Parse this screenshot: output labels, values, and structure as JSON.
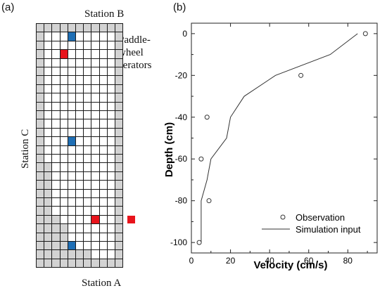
{
  "panel_a": {
    "label": "(a)",
    "station_b": "Station B",
    "station_c": "Station C",
    "station_a": "Station A",
    "aerator_label_lines": [
      "Paddle-",
      "wheel",
      "aerators"
    ],
    "colors": {
      "shaded": "#d3d3d3",
      "open": "#ffffff",
      "grid_line": "#1a1a1a",
      "blue_marker": "#1f6fb5",
      "red_marker": "#e8141c"
    },
    "grid": {
      "cols": 11,
      "rows": 28,
      "shaded_rows_pattern": [
        "XXXXXXXXXXX",
        "XOOOOOOOOOX",
        "XOOOOOOOOOX",
        "XOOOOOOOOOX",
        "XOOOOOOOOOX",
        "XOOOOOOOOOX",
        "XOOOOOOOOOX",
        "XOOOOOOOOOX",
        "XOOOOOOOOOX",
        "XOOOOOOOOOX",
        "XOOOOOOOOOX",
        "XOOOOOOOOOX",
        "XOOOOOOOOOX",
        "XOOOOOOOOOX",
        "XOOOOOOOOOX",
        "XOOOOOOOOOX",
        "XXOOOOOOOOX",
        "XXOOOOOOOOX",
        "XXOOOOOOOOX",
        "XXOOOOOOOOX",
        "XXOOOOOOOOX",
        "XXOOOOOOOOX",
        "XXXOOOOOOOX",
        "XXXXOOOOOOX",
        "XXXXOOOOOOX",
        "XXXXXOOOOOX",
        "XXXXXXXOOOX",
        "XXXXXXXXXXX"
      ],
      "blue_cells": [
        [
          1,
          4
        ],
        [
          13,
          4
        ],
        [
          25,
          4
        ]
      ],
      "red_cells": [
        [
          3,
          3
        ],
        [
          22,
          7
        ]
      ],
      "outside_red": {
        "row": 22
      }
    }
  },
  "panel_b": {
    "label": "(b)"
  },
  "chart_data": {
    "type": "scatter",
    "xlabel": "Velocity (cm/s)",
    "ylabel": "Depth (cm)",
    "xlim": [
      0,
      95
    ],
    "ylim": [
      -105,
      5
    ],
    "xticks": [
      0,
      20,
      40,
      60,
      80
    ],
    "yticks": [
      0,
      -20,
      -40,
      -60,
      -80,
      -100
    ],
    "grid": false,
    "legend_position": "bottom-right",
    "series": [
      {
        "name": "Observation",
        "style": "open-circle",
        "x": [
          89,
          56,
          8,
          5,
          9,
          4
        ],
        "y": [
          0,
          -20,
          -40,
          -60,
          -80,
          -100
        ]
      },
      {
        "name": "Simulation input",
        "style": "line",
        "x": [
          85,
          71,
          43,
          27,
          20,
          18,
          10,
          8,
          5,
          5
        ],
        "y": [
          0,
          -10,
          -20,
          -30,
          -40,
          -50,
          -60,
          -70,
          -80,
          -100
        ]
      }
    ]
  }
}
